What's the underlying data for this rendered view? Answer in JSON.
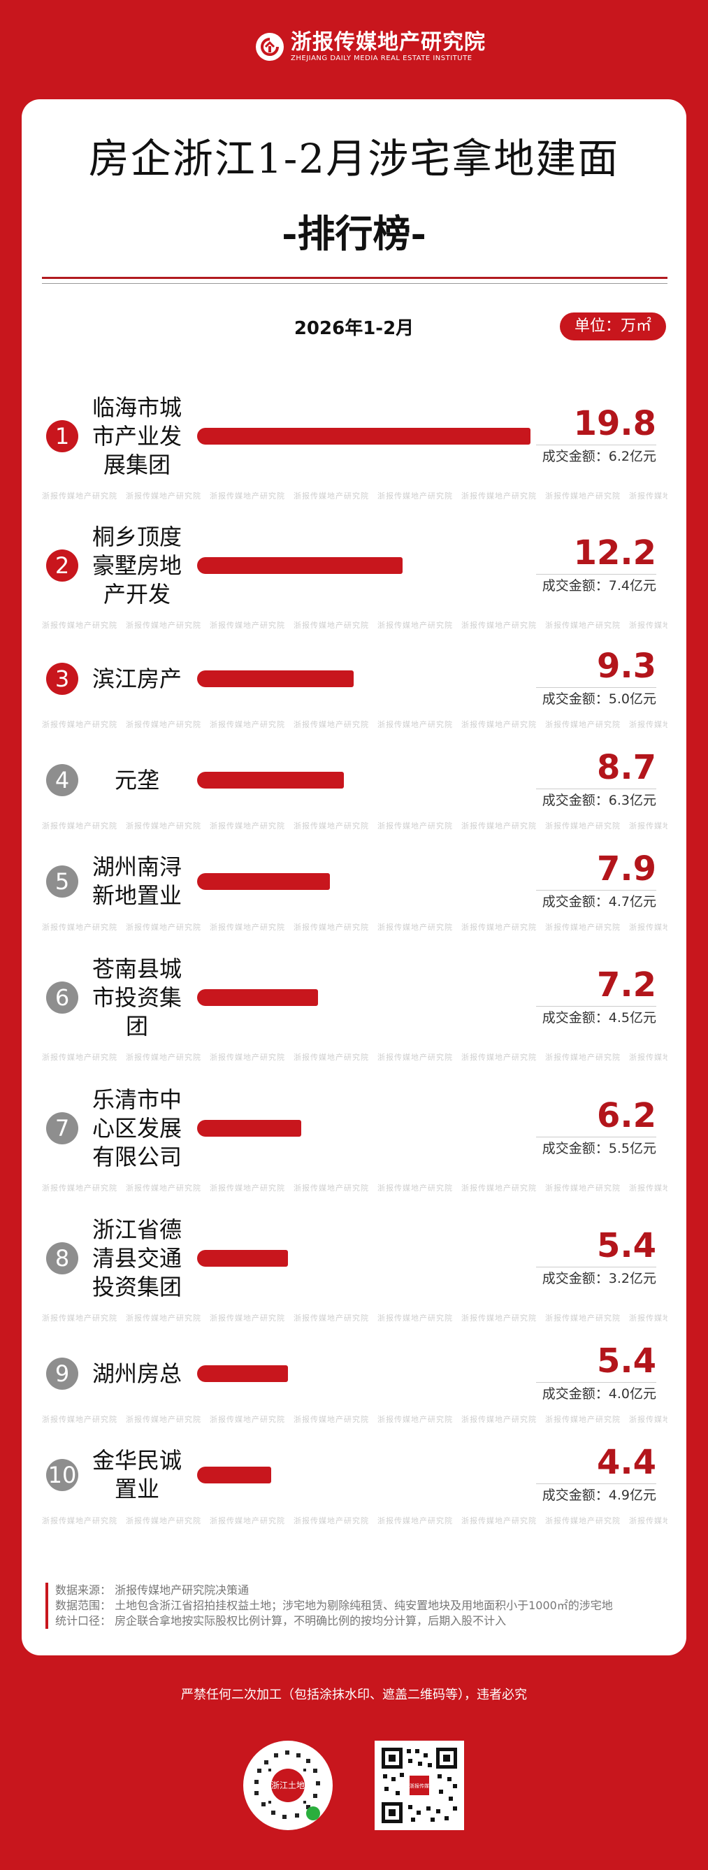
{
  "header": {
    "logo_cn": "浙报传媒地产研究院",
    "logo_en": "ZHEJIANG DAILY MEDIA REAL ESTATE INSTITUTE"
  },
  "title_line1": "房企浙江1-2月涉宅拿地建面",
  "title_line2": "-排行榜-",
  "period": "2026年1-2月",
  "unit_label": "单位：万㎡",
  "watermark_text": "浙报传媒地产研究院",
  "chart_data": {
    "type": "bar",
    "orientation": "horizontal",
    "unit": "万㎡",
    "categories": [
      "临海市城市产业发展集团",
      "桐乡顶度豪墅房地产开发",
      "滨江房产",
      "元垄",
      "湖州南浔新地置业",
      "苍南县城市投资集团",
      "乐清市中心区发展有限公司",
      "浙江省德清县交通投资集团",
      "湖州房总",
      "金华民诚置业"
    ],
    "ranks": [
      "1",
      "2",
      "3",
      "4",
      "5",
      "6",
      "7",
      "8",
      "9",
      "10"
    ],
    "values": [
      19.8,
      12.2,
      9.3,
      8.7,
      7.9,
      7.2,
      6.2,
      5.4,
      5.4,
      4.4
    ],
    "value_labels": [
      "19.8",
      "12.2",
      "9.3",
      "8.7",
      "7.9",
      "7.2",
      "6.2",
      "5.4",
      "5.4",
      "4.4"
    ],
    "deal_amounts": [
      "成交金额：6.2亿元",
      "成交金额：7.4亿元",
      "成交金额：5.0亿元",
      "成交金额：6.3亿元",
      "成交金额：4.7亿元",
      "成交金额：4.5亿元",
      "成交金额：5.5亿元",
      "成交金额：3.2亿元",
      "成交金额：4.0亿元",
      "成交金额：4.9亿元"
    ],
    "rank_colors": [
      "#c8161d",
      "#c8161d",
      "#c8161d",
      "#8e8e8e",
      "#8e8e8e",
      "#8e8e8e",
      "#8e8e8e",
      "#8e8e8e",
      "#8e8e8e",
      "#8e8e8e"
    ],
    "bar_color": "#c8161d",
    "xlim": [
      0,
      19.8
    ]
  },
  "notes": [
    "数据来源：  浙报传媒地产研究院决策通",
    "数据范围：  土地包含浙江省招拍挂权益土地；涉宅地为剔除纯租赁、纯安置地块及用地面积小于1000㎡的涉宅地",
    "统计口径：  房企联合拿地按实际股权比例计算，不明确比例的按均分计算，后期入股不计入"
  ],
  "footer": {
    "disclaimer": "严禁任何二次加工（包括涂抹水印、遮盖二维码等），违者必究",
    "qr_left_label": "浙江土地",
    "qr_right_label": "浙报传媒"
  },
  "colors": {
    "background": "#c8161d",
    "accent": "#b3151b"
  }
}
